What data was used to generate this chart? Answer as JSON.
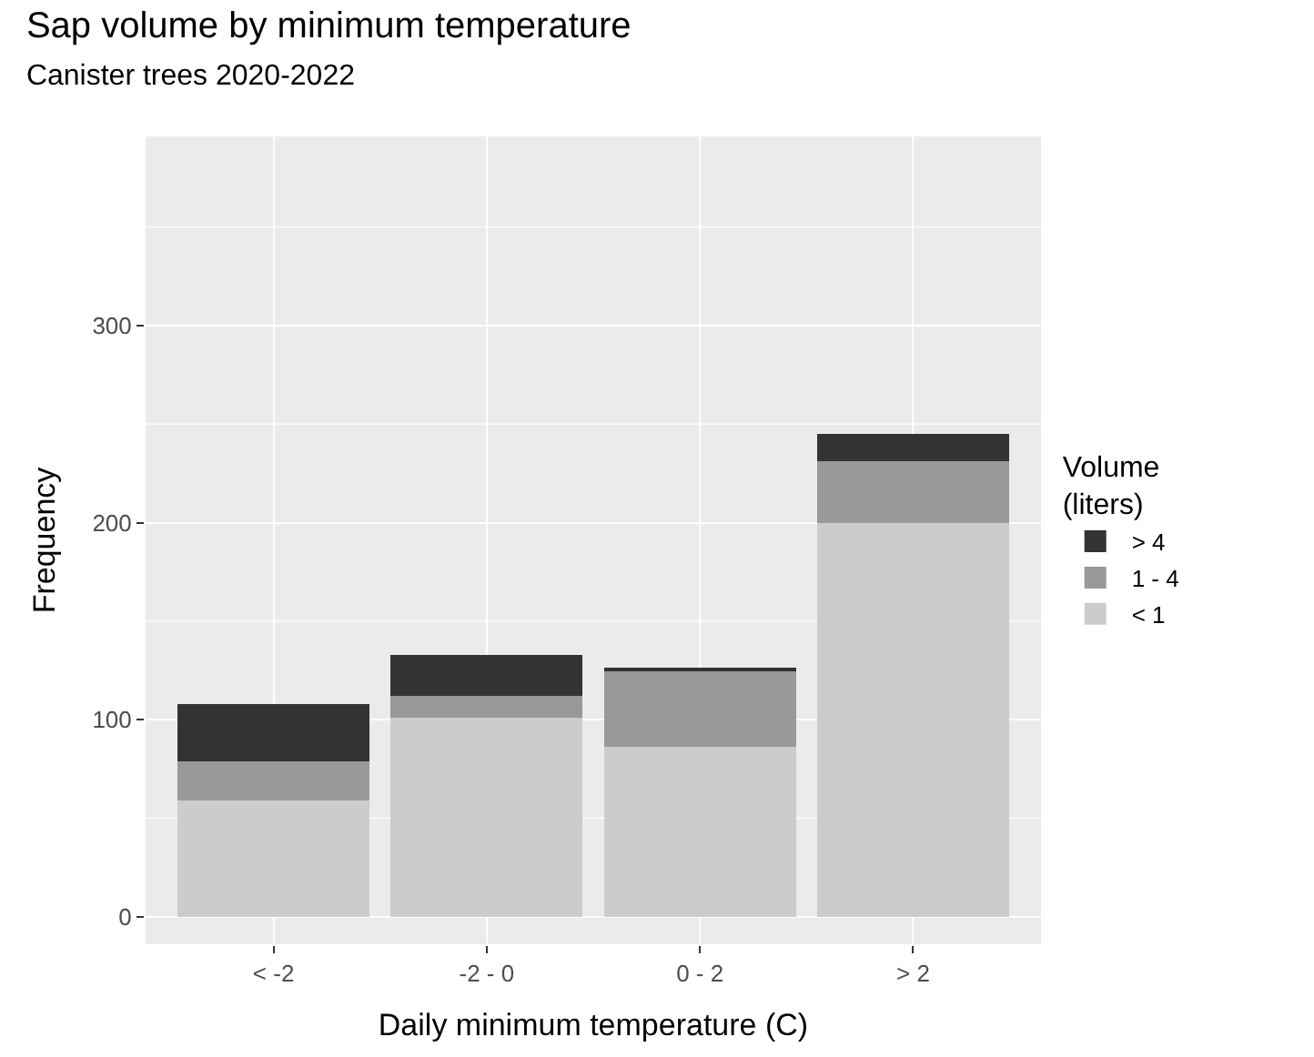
{
  "chart_data": {
    "type": "bar",
    "title": "Sap volume by minimum temperature",
    "subtitle": "Canister trees 2020-2022",
    "xlabel": "Daily minimum temperature (C)",
    "ylabel": "Frequency",
    "legend_title": "Volume\n(liters)",
    "categories": [
      "< -2",
      "-2 - 0",
      "0 - 2",
      "> 2"
    ],
    "stacked": true,
    "series": [
      {
        "name": "< 1",
        "color": "#cccccc",
        "values": [
          59,
          101,
          86,
          200
        ]
      },
      {
        "name": "1 - 4",
        "color": "#999999",
        "values": [
          20,
          11,
          39,
          31
        ]
      },
      {
        "name": "> 4",
        "color": "#333333",
        "values": [
          29,
          21,
          1,
          14
        ]
      }
    ],
    "ylim": [
      -14,
      396
    ],
    "yticks": [
      0,
      100,
      200,
      300
    ],
    "grid": true,
    "legend": "right"
  }
}
